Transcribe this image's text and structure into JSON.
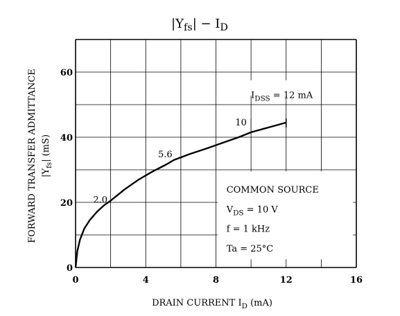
{
  "chart_data": {
    "type": "line",
    "title": {
      "main": "|Y",
      "sub": "fs",
      "tail": "| − I",
      "sub2": "D"
    },
    "xlabel": {
      "main": "DRAIN CURRENT  I",
      "sub": "D",
      "tail": "  (mA)"
    },
    "ylabel": {
      "line1": "FORWARD TRANSFER ADMITTANCE",
      "line2a": "|Y",
      "line2sub": "fs",
      "line2b": "|  (mS)"
    },
    "xlim": [
      0,
      16
    ],
    "ylim": [
      0,
      70
    ],
    "xticks": [
      0,
      4,
      8,
      12,
      16
    ],
    "yticks": [
      0,
      20,
      40,
      60
    ],
    "grid": true,
    "series": [
      {
        "name": "",
        "segments": [
          {
            "label": "2.0",
            "points": [
              [
                0,
                0
              ],
              [
                0.1,
                5
              ],
              [
                0.25,
                8.5
              ],
              [
                0.5,
                12
              ],
              [
                0.8,
                14.5
              ],
              [
                1.2,
                17
              ],
              [
                1.6,
                19
              ],
              [
                2.0,
                20.5
              ]
            ]
          },
          {
            "label": "5.6",
            "points": [
              [
                2.0,
                20.5
              ],
              [
                2.8,
                24
              ],
              [
                3.6,
                27
              ],
              [
                4.4,
                29.5
              ],
              [
                5.2,
                31.7
              ],
              [
                5.6,
                33
              ]
            ]
          },
          {
            "label": "10",
            "points": [
              [
                5.6,
                33
              ],
              [
                6.5,
                34.8
              ],
              [
                7.5,
                36.6
              ],
              [
                8.5,
                38.5
              ],
              [
                9.3,
                40
              ],
              [
                10,
                41.5
              ]
            ]
          },
          {
            "label": "IDSS",
            "points": [
              [
                10,
                41.5
              ],
              [
                11,
                43
              ],
              [
                12,
                44.5
              ]
            ]
          }
        ]
      }
    ],
    "annotations": {
      "idss": {
        "main": "I",
        "sub": "DSS",
        "tail": " = 12 mA"
      },
      "conditions": [
        {
          "text": "COMMON SOURCE",
          "sub": ""
        },
        {
          "text": "V",
          "sub": "DS",
          "tail": " = 10 V"
        },
        {
          "text": "f = 1 kHz",
          "sub": ""
        },
        {
          "text": "Ta = 25°C",
          "sub": ""
        }
      ]
    }
  }
}
